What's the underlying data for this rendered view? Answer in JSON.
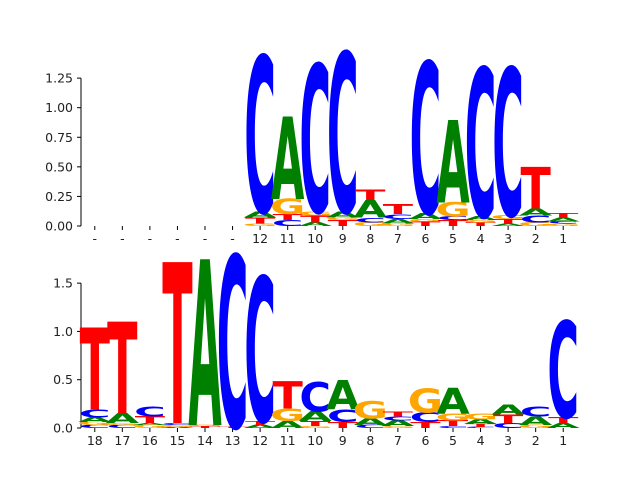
{
  "chart_data": [
    {
      "type": "sequence-logo",
      "ylim": [
        0,
        1.42
      ],
      "yticks": [
        "0.00",
        "0.25",
        "0.50",
        "0.75",
        "1.00",
        "1.25"
      ],
      "ytick_values": [
        0,
        0.25,
        0.5,
        0.75,
        1.0,
        1.25
      ],
      "positions": [
        "-",
        "-",
        "-",
        "-",
        "-",
        "-",
        "12",
        "11",
        "10",
        "9",
        "8",
        "7",
        "6",
        "5",
        "4",
        "3",
        "2",
        "1"
      ],
      "columns": [
        [],
        [],
        [],
        [],
        [],
        [],
        [
          [
            "G",
            0.02
          ],
          [
            "T",
            0.05
          ],
          [
            "A",
            0.05
          ],
          [
            "C",
            1.32
          ]
        ],
        [
          [
            "C",
            0.05
          ],
          [
            "T",
            0.05
          ],
          [
            "G",
            0.13
          ],
          [
            "A",
            0.7
          ]
        ],
        [
          [
            "A",
            0.03
          ],
          [
            "T",
            0.06
          ],
          [
            "G",
            0.03
          ],
          [
            "C",
            1.25
          ]
        ],
        [
          [
            "T",
            0.05
          ],
          [
            "G",
            0.02
          ],
          [
            "A",
            0.05
          ],
          [
            "C",
            1.35
          ]
        ],
        [
          [
            "G",
            0.03
          ],
          [
            "C",
            0.04
          ],
          [
            "A",
            0.15
          ],
          [
            "T",
            0.09
          ]
        ],
        [
          [
            "G",
            0.02
          ],
          [
            "A",
            0.04
          ],
          [
            "C",
            0.04
          ],
          [
            "T",
            0.08
          ]
        ],
        [
          [
            "T",
            0.04
          ],
          [
            "G",
            0.02
          ],
          [
            "A",
            0.05
          ],
          [
            "C",
            1.28
          ]
        ],
        [
          [
            "T",
            0.05
          ],
          [
            "C",
            0.03
          ],
          [
            "G",
            0.12
          ],
          [
            "A",
            0.7
          ]
        ],
        [
          [
            "T",
            0.03
          ],
          [
            "G",
            0.02
          ],
          [
            "A",
            0.03
          ],
          [
            "C",
            1.26
          ]
        ],
        [
          [
            "A",
            0.02
          ],
          [
            "T",
            0.04
          ],
          [
            "G",
            0.03
          ],
          [
            "C",
            1.25
          ]
        ],
        [
          [
            "G",
            0.03
          ],
          [
            "C",
            0.06
          ],
          [
            "A",
            0.06
          ],
          [
            "T",
            0.35
          ]
        ],
        [
          [
            "G",
            0.02
          ],
          [
            "C",
            0.02
          ],
          [
            "A",
            0.03
          ],
          [
            "T",
            0.04
          ]
        ]
      ]
    },
    {
      "type": "sequence-logo",
      "ylim": [
        0,
        1.75
      ],
      "yticks": [
        "0.0",
        "0.5",
        "1.0",
        "1.5"
      ],
      "ytick_values": [
        0,
        0.5,
        1.0,
        1.5
      ],
      "positions": [
        "18",
        "17",
        "16",
        "15",
        "14",
        "13",
        "12",
        "11",
        "10",
        "9",
        "8",
        "7",
        "6",
        "5",
        "4",
        "3",
        "2",
        "1"
      ],
      "columns": [
        [
          [
            "C",
            0.03
          ],
          [
            "G",
            0.03
          ],
          [
            "A",
            0.05
          ],
          [
            "C",
            0.08
          ],
          [
            "T",
            0.85
          ]
        ],
        [
          [
            "C",
            0.03
          ],
          [
            "G",
            0.02
          ],
          [
            "A",
            0.1
          ],
          [
            "T",
            0.95
          ]
        ],
        [
          [
            "G",
            0.03
          ],
          [
            "A",
            0.02
          ],
          [
            "T",
            0.07
          ],
          [
            "C",
            0.1
          ]
        ],
        [
          [
            "A",
            0.01
          ],
          [
            "G",
            0.02
          ],
          [
            "C",
            0.02
          ],
          [
            "T",
            1.67
          ]
        ],
        [
          [
            "T",
            0.02
          ],
          [
            "G",
            0.01
          ],
          [
            "A",
            1.72
          ]
        ],
        [
          [
            "T",
            0.01
          ],
          [
            "C",
            1.78
          ]
        ],
        [
          [
            "A",
            0.03
          ],
          [
            "T",
            0.04
          ],
          [
            "C",
            1.5
          ]
        ],
        [
          [
            "A",
            0.07
          ],
          [
            "G",
            0.13
          ],
          [
            "T",
            0.28
          ]
        ],
        [
          [
            "G",
            0.02
          ],
          [
            "T",
            0.05
          ],
          [
            "A",
            0.1
          ],
          [
            "C",
            0.3
          ]
        ],
        [
          [
            "T",
            0.06
          ],
          [
            "C",
            0.13
          ],
          [
            "A",
            0.3
          ]
        ],
        [
          [
            "C",
            0.03
          ],
          [
            "A",
            0.07
          ],
          [
            "G",
            0.18
          ]
        ],
        [
          [
            "G",
            0.02
          ],
          [
            "A",
            0.06
          ],
          [
            "C",
            0.04
          ],
          [
            "T",
            0.05
          ]
        ],
        [
          [
            "T",
            0.06
          ],
          [
            "C",
            0.1
          ],
          [
            "G",
            0.25
          ]
        ],
        [
          [
            "C",
            0.02
          ],
          [
            "T",
            0.06
          ],
          [
            "G",
            0.07
          ],
          [
            "A",
            0.27
          ]
        ],
        [
          [
            "C",
            0.01
          ],
          [
            "T",
            0.03
          ],
          [
            "A",
            0.05
          ],
          [
            "G",
            0.06
          ]
        ],
        [
          [
            "C",
            0.05
          ],
          [
            "T",
            0.09
          ],
          [
            "A",
            0.1
          ]
        ],
        [
          [
            "G",
            0.03
          ],
          [
            "A",
            0.09
          ],
          [
            "C",
            0.1
          ]
        ],
        [
          [
            "A",
            0.05
          ],
          [
            "T",
            0.06
          ],
          [
            "C",
            1.0
          ]
        ]
      ]
    }
  ],
  "colors": {
    "A": "#008000",
    "C": "#0000ff",
    "G": "#ffa500",
    "T": "#ff0000"
  }
}
